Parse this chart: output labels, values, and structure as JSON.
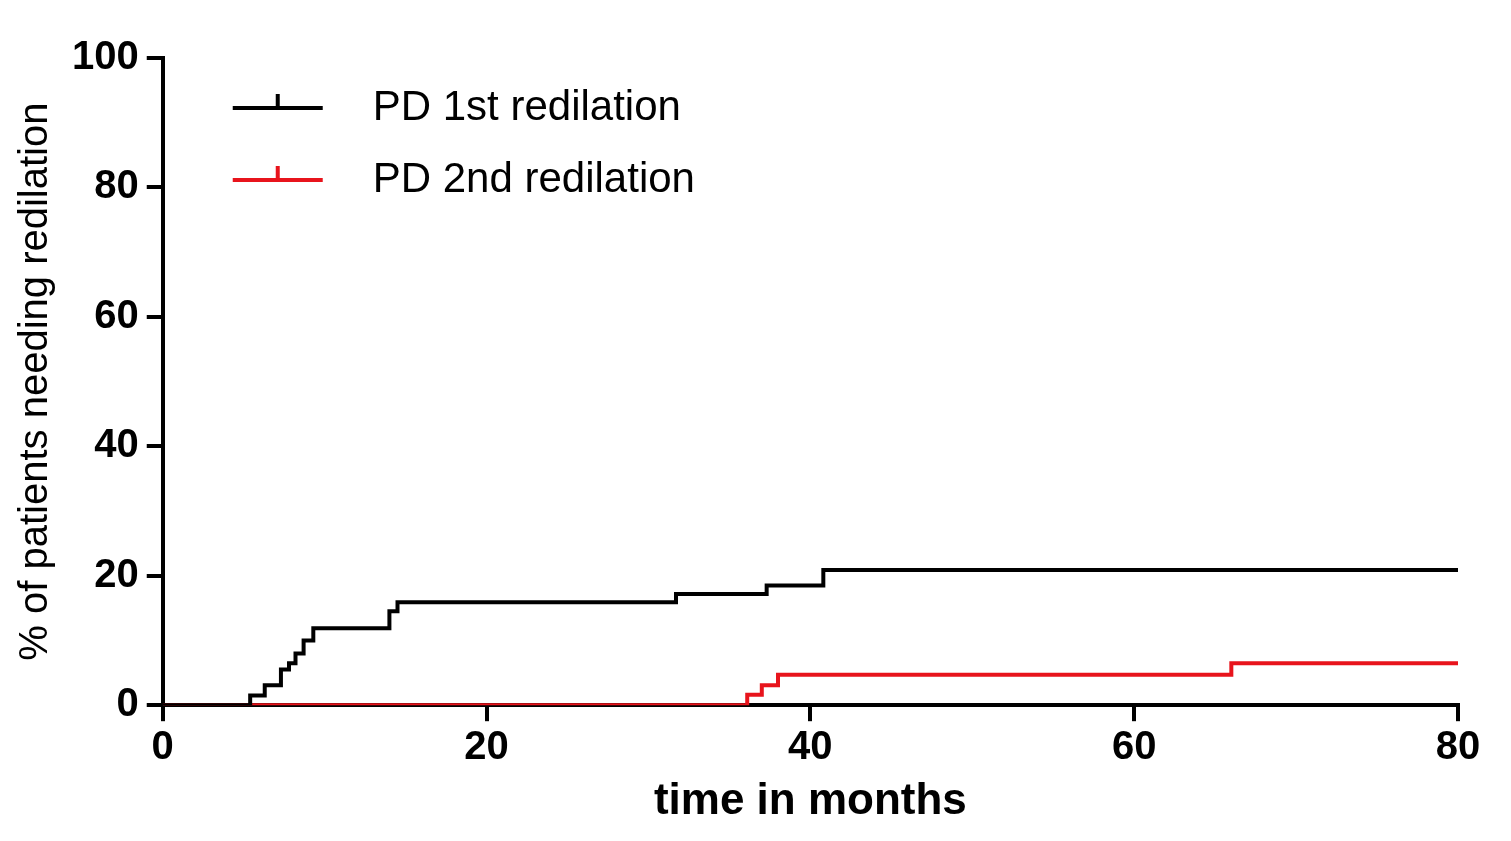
{
  "chart_data": {
    "type": "step",
    "xlabel": "time in months",
    "ylabel": "% of patients needing redilation",
    "xlim": [
      0,
      80
    ],
    "xticks": [
      0,
      20,
      40,
      60,
      80
    ],
    "ylim": [
      0,
      100
    ],
    "yticks": [
      0,
      20,
      40,
      60,
      80,
      100
    ],
    "grid": false,
    "legend": "top left",
    "marker": "none",
    "line_style": "solid",
    "series": [
      {
        "name": "PD 1st redilation",
        "color": "#000000",
        "x": [
          0,
          5.4,
          6.3,
          7.3,
          7.8,
          8.2,
          8.7,
          9.3,
          14,
          14.5,
          31.7,
          37.3,
          40.8,
          80
        ],
        "values": [
          0,
          1.5,
          3.1,
          5.5,
          6.5,
          8,
          10,
          11.9,
          14.5,
          15.9,
          17.2,
          18.5,
          20.9,
          20.9
        ]
      },
      {
        "name": "PD 2nd redilation",
        "color": "#e8141c",
        "x": [
          0,
          36.1,
          37,
          38,
          66,
          80
        ],
        "values": [
          0,
          1.6,
          3.1,
          4.7,
          6.5,
          6.5
        ]
      }
    ]
  }
}
